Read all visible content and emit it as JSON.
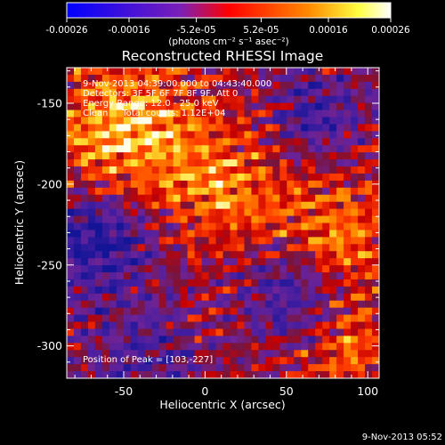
{
  "chart_data": {
    "type": "heatmap",
    "title": "Reconstructed RHESSI Image",
    "xlabel": "Heliocentric X (arcsec)",
    "ylabel": "Heliocentric Y (arcsec)",
    "xlim": [
      -85,
      107
    ],
    "ylim": [
      -320,
      -128
    ],
    "x_ticks": [
      -50,
      0,
      50,
      100
    ],
    "y_ticks": [
      -150,
      -200,
      -250,
      -300
    ],
    "colorbar": {
      "ticks": [
        "-0.00026",
        "-0.00016",
        "-5.2e-05",
        "5.2e-05",
        "0.00016",
        "0.00026"
      ],
      "tick_values": [
        -0.00026,
        -0.00016,
        -5.2e-05,
        5.2e-05,
        0.00016,
        0.00026
      ],
      "range": [
        -0.00026,
        0.00026
      ],
      "unit_label": "(photons cm⁻² s⁻¹ asec⁻²)"
    },
    "annotations": [
      "9-Nov-2013 04:39:00.000 to 04:43:40.000",
      "Detectors: 3F 5F 6F 7F 8F 9F, Att 0",
      "Energy Range: 12.0 - 25.0 keV",
      "Clean     Total counts: 1.12E+04"
    ],
    "peak_label": "Position of Peak = [103,-227]",
    "peak_position": [
      103,
      -227
    ],
    "footer": "9-Nov-2013 05:52",
    "colors": {
      "background": "#000000",
      "text": "#ffffff"
    }
  }
}
